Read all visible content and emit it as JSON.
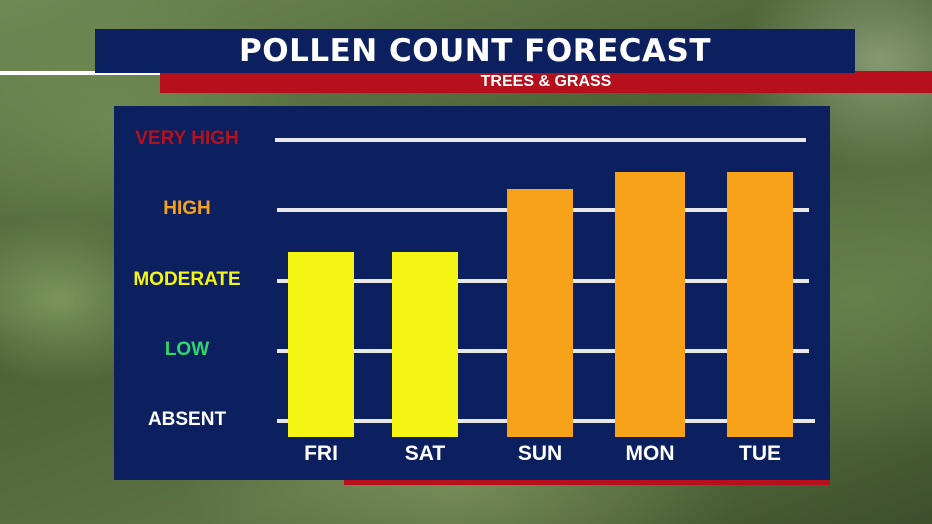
{
  "header": {
    "title": "POLLEN COUNT FORECAST",
    "subtitle": "TREES & GRASS"
  },
  "colors": {
    "navy": "#0c1f5e",
    "red": "#b5101c",
    "moderate_bar": "#f4f513",
    "high_bar": "#f8a21a"
  },
  "chart_data": {
    "type": "bar",
    "title": "POLLEN COUNT FORECAST",
    "subtitle": "TREES & GRASS",
    "categories": [
      "FRI",
      "SAT",
      "SUN",
      "MON",
      "TUE"
    ],
    "values": [
      2.4,
      2.4,
      3.3,
      3.55,
      3.55
    ],
    "bar_colors": [
      "#f4f513",
      "#f4f513",
      "#f8a21a",
      "#f8a21a",
      "#f8a21a"
    ],
    "ylim": [
      0,
      4
    ],
    "levels": [
      {
        "label": "VERY HIGH",
        "value": 4,
        "color": "#b5101c"
      },
      {
        "label": "HIGH",
        "value": 3,
        "color": "#f8a21a"
      },
      {
        "label": "MODERATE",
        "value": 2,
        "color": "#f4f513"
      },
      {
        "label": "LOW",
        "value": 1,
        "color": "#2fd66b"
      },
      {
        "label": "ABSENT",
        "value": 0,
        "color": "#ffffff"
      }
    ],
    "grid": true
  }
}
